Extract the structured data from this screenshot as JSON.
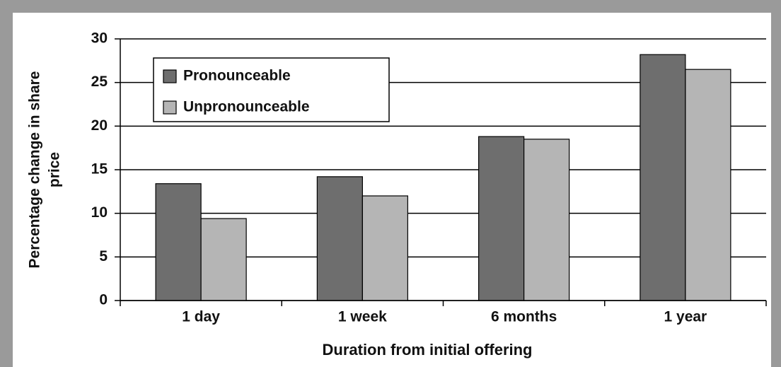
{
  "chart_data": {
    "type": "bar",
    "xlabel": "Duration from initial offering",
    "ylabel": [
      "Percentage change in share",
      "price"
    ],
    "categories": [
      "1 day",
      "1 week",
      "6 months",
      "1 year"
    ],
    "series": [
      {
        "name": "Pronounceable",
        "color": "#6e6e6e",
        "values": [
          13.4,
          14.2,
          18.8,
          28.2
        ]
      },
      {
        "name": "Unpronounceable",
        "color": "#b5b5b5",
        "values": [
          9.4,
          12.0,
          18.5,
          26.5
        ]
      }
    ],
    "ylim": [
      0,
      30
    ],
    "yticks": [
      0,
      5,
      10,
      15,
      20,
      25,
      30
    ],
    "grid": true,
    "legend": "upper left"
  }
}
